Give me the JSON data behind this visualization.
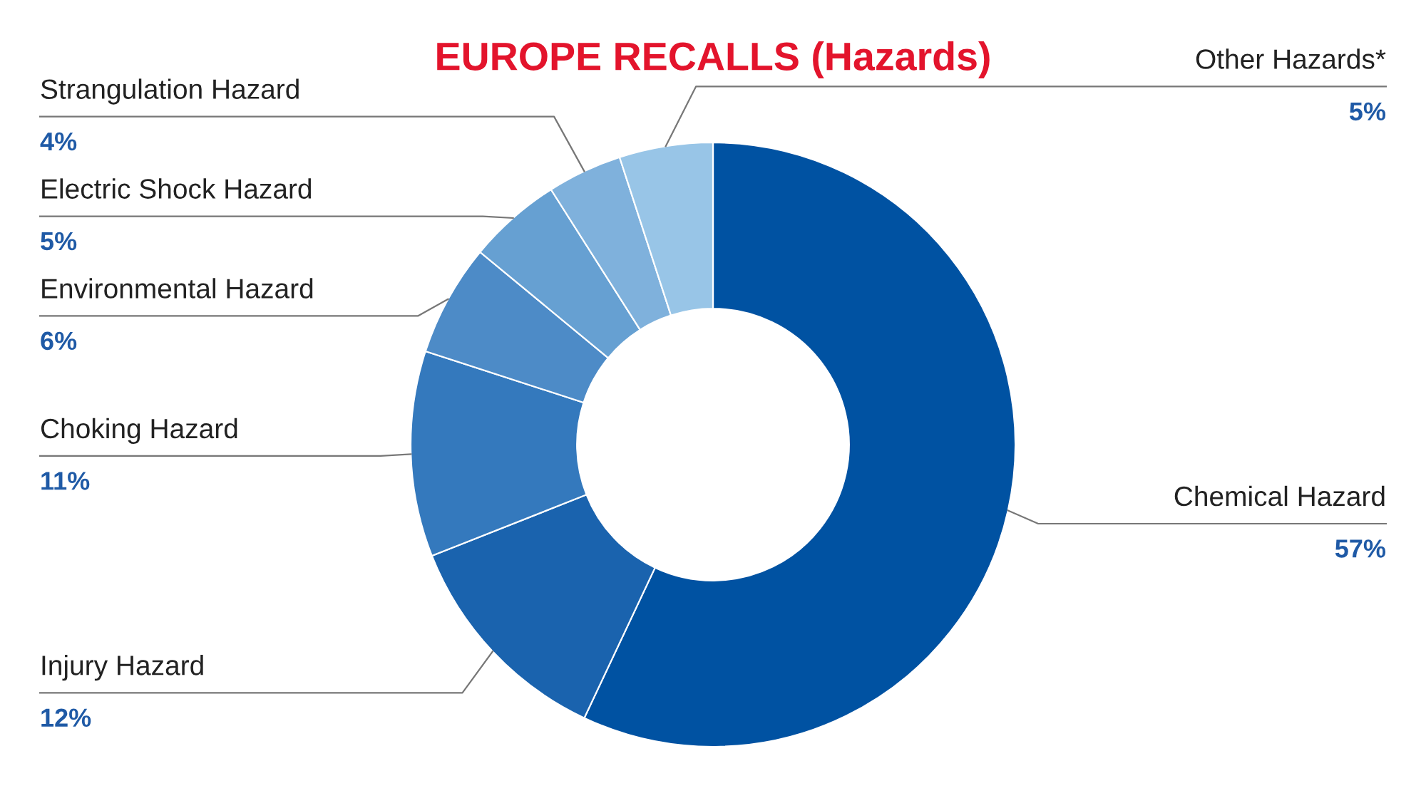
{
  "chart_data": {
    "type": "donut",
    "title": "EUROPE RECALLS (Hazards)",
    "categories": [
      "Chemical Hazard",
      "Injury Hazard",
      "Choking Hazard",
      "Environmental Hazard",
      "Electric Shock Hazard",
      "Strangulation Hazard",
      "Other Hazards*"
    ],
    "values": [
      57,
      12,
      11,
      6,
      5,
      4,
      5
    ],
    "colors": [
      "#0052a2",
      "#1a63ae",
      "#3479bd",
      "#4d8bc7",
      "#66a0d2",
      "#7fb1dc",
      "#98c5e7"
    ],
    "value_labels": [
      "57%",
      "12%",
      "11%",
      "6%",
      "5%",
      "4%",
      "5%"
    ],
    "legend": false
  }
}
